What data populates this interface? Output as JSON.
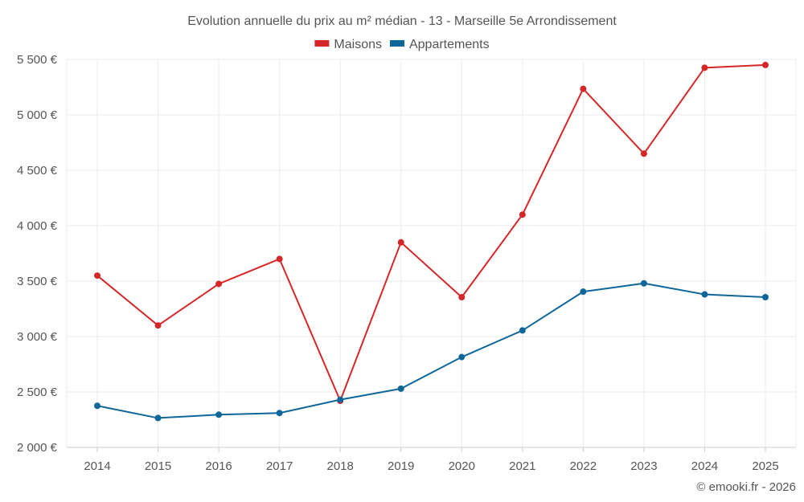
{
  "chart_data": {
    "type": "line",
    "title": "Evolution annuelle du prix au m² médian - 13 - Marseille 5e Arrondissement",
    "categories": [
      "2014",
      "2015",
      "2016",
      "2017",
      "2018",
      "2019",
      "2020",
      "2021",
      "2022",
      "2023",
      "2024",
      "2025"
    ],
    "series": [
      {
        "name": "Maisons",
        "color": "#d62728",
        "values": [
          3550,
          3100,
          3475,
          3700,
          2420,
          3850,
          3355,
          4100,
          5235,
          4650,
          5425,
          5450
        ]
      },
      {
        "name": "Appartements",
        "color": "#0e6699",
        "values": [
          2375,
          2265,
          2295,
          2310,
          2430,
          2530,
          2815,
          3055,
          3405,
          3480,
          3380,
          3355
        ]
      }
    ],
    "ylim": [
      2000,
      5500
    ],
    "yticks": [
      2000,
      2500,
      3000,
      3500,
      4000,
      4500,
      5000,
      5500
    ],
    "ytick_labels": [
      "2 000 €",
      "2 500 €",
      "3 000 €",
      "3 500 €",
      "4 000 €",
      "4 500 €",
      "5 000 €",
      "5 500 €"
    ],
    "xlabel": "",
    "ylabel": "",
    "grid": true,
    "legend": "top-center"
  },
  "credit": "© emooki.fr - 2026"
}
